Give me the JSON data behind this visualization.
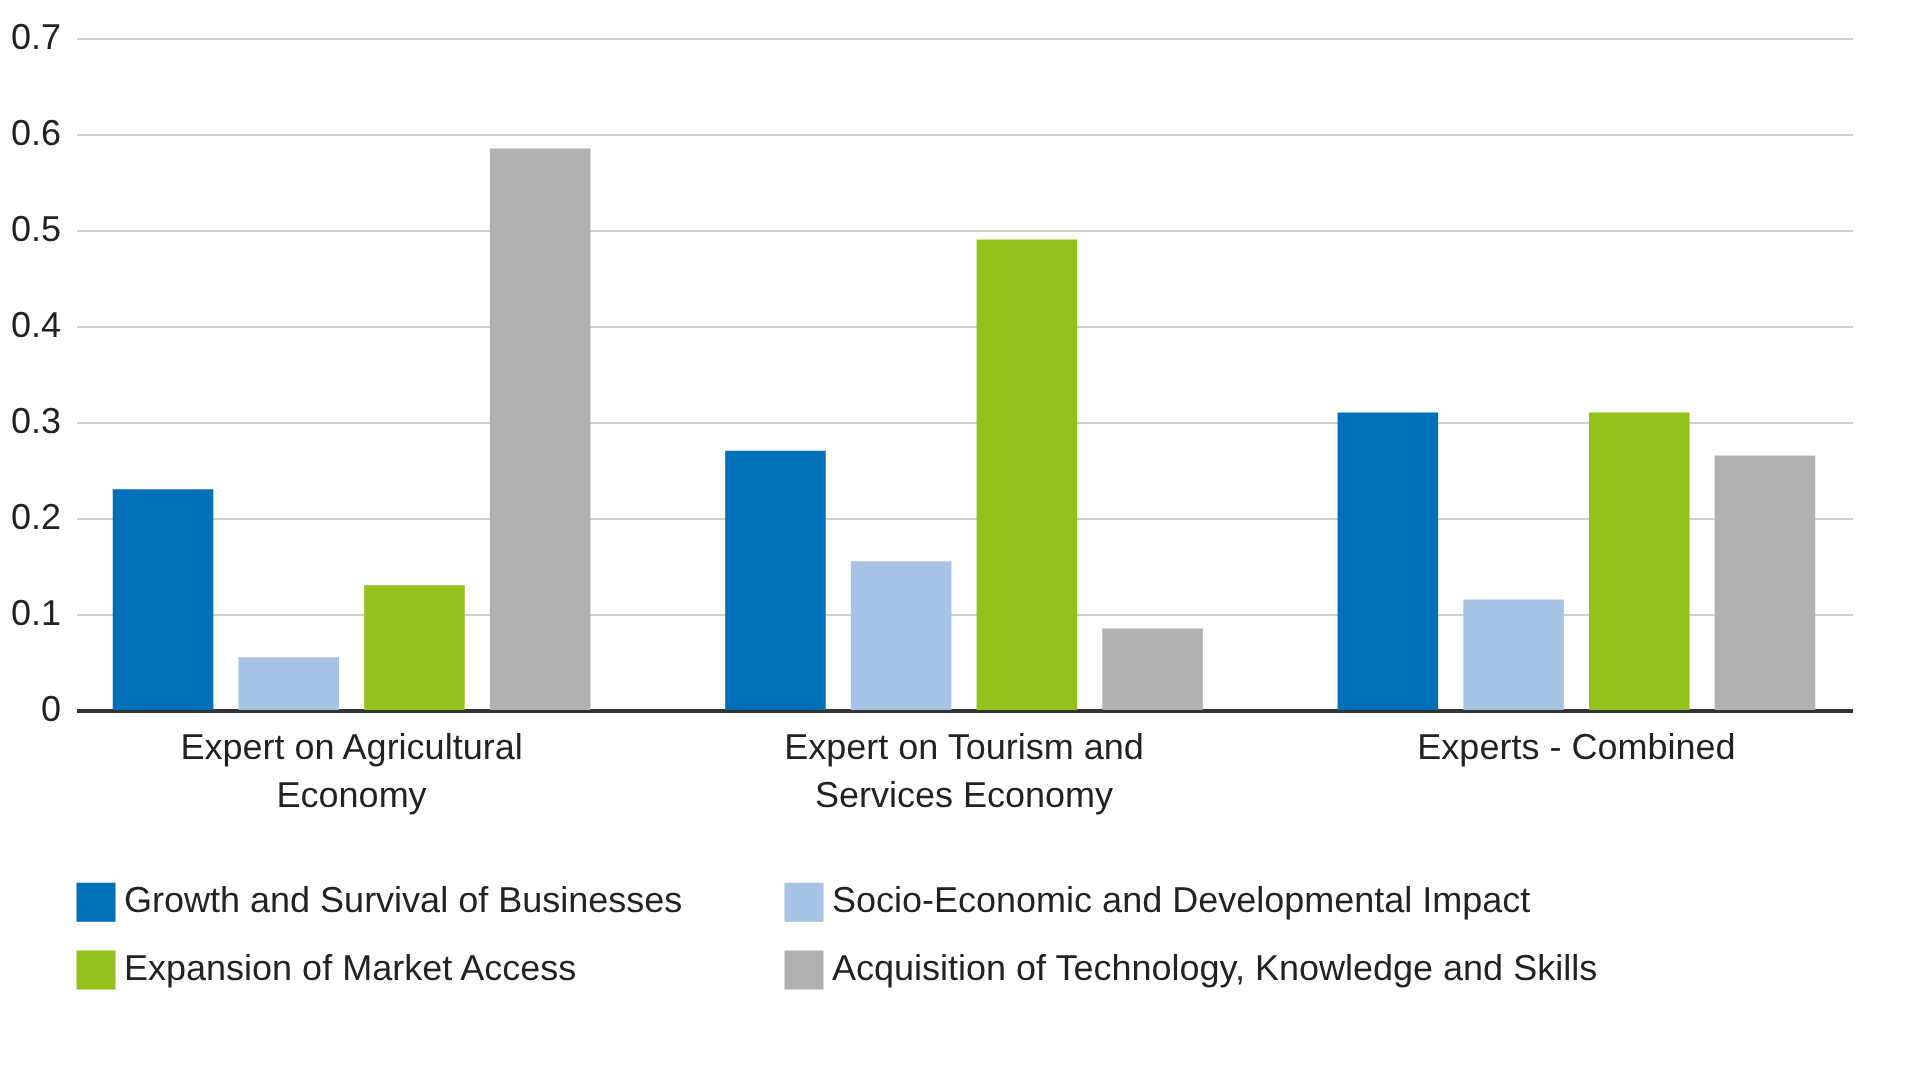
{
  "chart_data": {
    "type": "bar",
    "categories": [
      "Expert on Agricultural Economy",
      "Expert on Tourism and Services Economy",
      "Experts - Combined"
    ],
    "series": [
      {
        "name": "Growth and Survival of Businesses",
        "color": "#0070b8",
        "values": [
          0.23,
          0.27,
          0.31
        ]
      },
      {
        "name": "Socio-Economic and Developmental Impact",
        "color": "#a6c3e6",
        "values": [
          0.055,
          0.155,
          0.115
        ]
      },
      {
        "name": "Expansion of Market Access",
        "color": "#95c11f",
        "values": [
          0.13,
          0.49,
          0.31
        ]
      },
      {
        "name": "Acquisition of Technology, Knowledge and Skills",
        "color": "#b1b1b1",
        "values": [
          0.585,
          0.085,
          0.265
        ]
      }
    ],
    "ylim": [
      0,
      0.7
    ],
    "yticks": [
      0,
      0.1,
      0.2,
      0.3,
      0.4,
      0.5,
      0.6,
      0.7
    ],
    "grid": "y",
    "legend": "bottom"
  }
}
